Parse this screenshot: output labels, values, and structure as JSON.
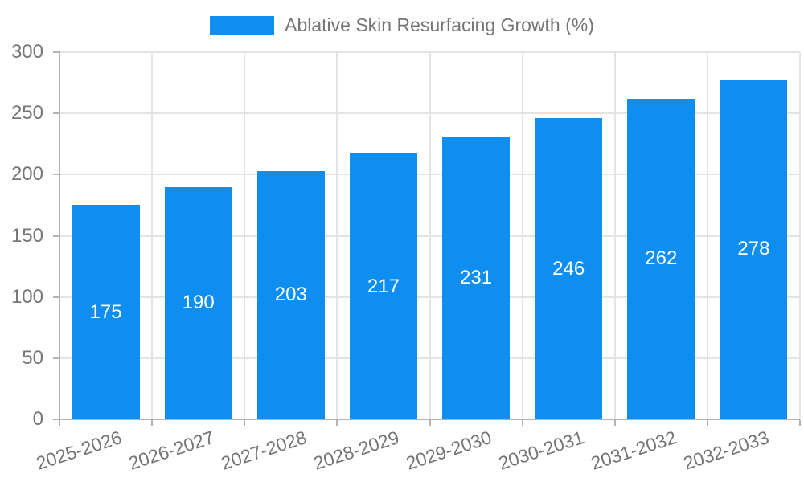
{
  "chart_data": {
    "type": "bar",
    "title": "Ablative Skin Resurfacing Growth (%)",
    "legend": {
      "position": "top-center",
      "items": [
        {
          "label": "Ablative Skin Resurfacing Growth (%)",
          "swatch_color": "#0d8ef0"
        }
      ]
    },
    "categories": [
      "2025-2026",
      "2026-2027",
      "2027-2028",
      "2028-2029",
      "2029-2030",
      "2030-2031",
      "2031-2032",
      "2032-2033"
    ],
    "values": [
      175,
      190,
      203,
      217,
      231,
      246,
      262,
      278
    ],
    "value_labels_shown": true,
    "xlabel": "",
    "ylabel": "",
    "ylim": [
      0,
      300
    ],
    "y_tick_step": 50,
    "y_ticks": [
      0,
      50,
      100,
      150,
      200,
      250,
      300
    ],
    "grid": true,
    "x_label_rotation_deg": -18,
    "colors": {
      "bar": "#0d8ef0",
      "value_label": "#ffffff",
      "tick_label": "#757575",
      "grid_line": "#e4e4e4",
      "axis_line": "#b3b3b3",
      "background": "#ffffff"
    }
  }
}
